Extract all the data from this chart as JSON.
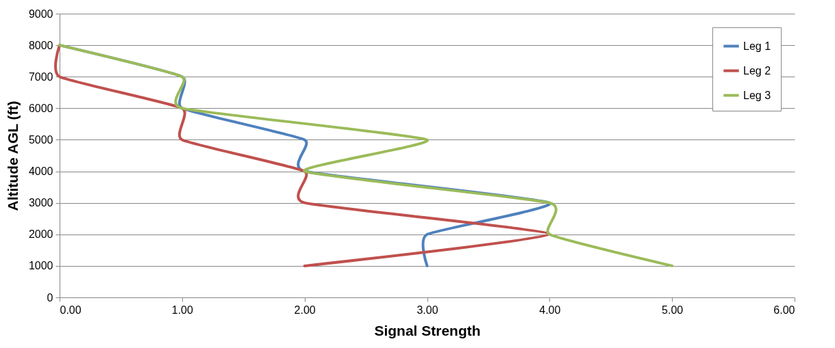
{
  "chart_data": {
    "type": "line",
    "xlabel": "Signal Strength",
    "ylabel": "Altitude AGL (ft)",
    "xlim": [
      0,
      6
    ],
    "xticks": [
      {
        "value": 0,
        "label": "0.00"
      },
      {
        "value": 1,
        "label": "1.00"
      },
      {
        "value": 2,
        "label": "2.00"
      },
      {
        "value": 3,
        "label": "3.00"
      },
      {
        "value": 4,
        "label": "4.00"
      },
      {
        "value": 5,
        "label": "5.00"
      },
      {
        "value": 6,
        "label": "6.00"
      }
    ],
    "ylim": [
      0,
      9000
    ],
    "yticks": [
      0,
      1000,
      2000,
      3000,
      4000,
      5000,
      6000,
      7000,
      8000,
      9000
    ],
    "grid": "y",
    "legend": "top right",
    "marker": "none",
    "line_style": "solid",
    "series": [
      {
        "name": "Leg 1",
        "color": "#4f81bd",
        "x": [
          3,
          3,
          4,
          2,
          2,
          1,
          1,
          0
        ],
        "values": [
          1000,
          2000,
          3000,
          4000,
          5000,
          6000,
          7000,
          8000
        ]
      },
      {
        "name": "Leg 2",
        "color": "#c0504d",
        "x": [
          2,
          4,
          2,
          2,
          1,
          1,
          0,
          0
        ],
        "values": [
          1000,
          2000,
          3000,
          4000,
          5000,
          6000,
          7000,
          8000
        ]
      },
      {
        "name": "Leg 3",
        "color": "#9bbb59",
        "x": [
          5,
          4,
          4,
          2,
          3,
          1,
          1,
          0
        ],
        "values": [
          1000,
          2000,
          3000,
          4000,
          5000,
          6000,
          7000,
          8000
        ]
      }
    ]
  }
}
